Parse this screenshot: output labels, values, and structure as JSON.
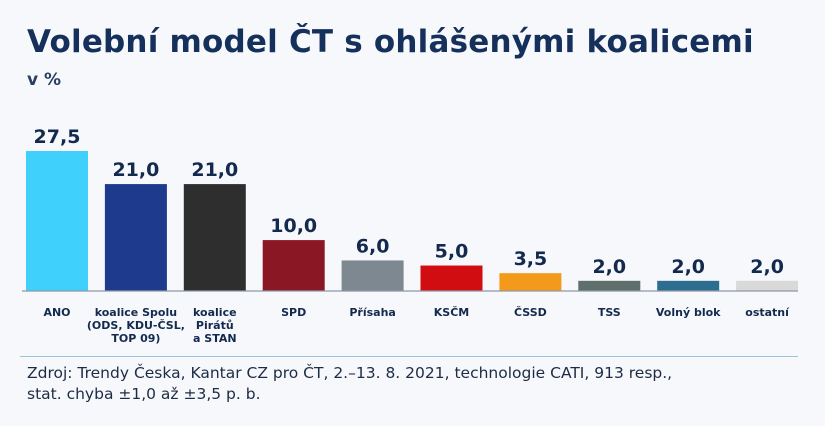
{
  "chart_data": {
    "type": "bar",
    "title": "Volební model ČT s ohlášenými koalicemi",
    "subtitle": "v %",
    "categories": [
      [
        "ANO"
      ],
      [
        "koalice Spolu",
        "(ODS, KDU-ČSL,",
        "TOP 09)"
      ],
      [
        "koalice",
        "Pirátů",
        "a STAN"
      ],
      [
        "SPD"
      ],
      [
        "Přísaha"
      ],
      [
        "KSČM"
      ],
      [
        "ČSSD"
      ],
      [
        "TSS"
      ],
      [
        "Volný blok"
      ],
      [
        "ostatní"
      ]
    ],
    "values": [
      27.5,
      21.0,
      21.0,
      10.0,
      6.0,
      5.0,
      3.5,
      2.0,
      2.0,
      2.0
    ],
    "value_labels": [
      "27,5",
      "21,0",
      "21,0",
      "10,0",
      "6,0",
      "5,0",
      "3,5",
      "2,0",
      "2,0",
      "2,0"
    ],
    "colors": [
      "#3fd1fb",
      "#1d3a8c",
      "#2e2e2e",
      "#8a1824",
      "#7d8890",
      "#d10d12",
      "#f49a1a",
      "#5e6f6c",
      "#2d6e90",
      "#d9d9d9"
    ],
    "ylim": [
      0,
      27.5
    ],
    "grid": false,
    "legend": "none"
  },
  "source": {
    "line1": "Zdroj: Trendy Česka, Kantar CZ pro ČT, 2.–13. 8. 2021, technologie CATI, 913 resp.,",
    "line2": "stat. chyba ±1,0 až ±3,5 p. b."
  }
}
